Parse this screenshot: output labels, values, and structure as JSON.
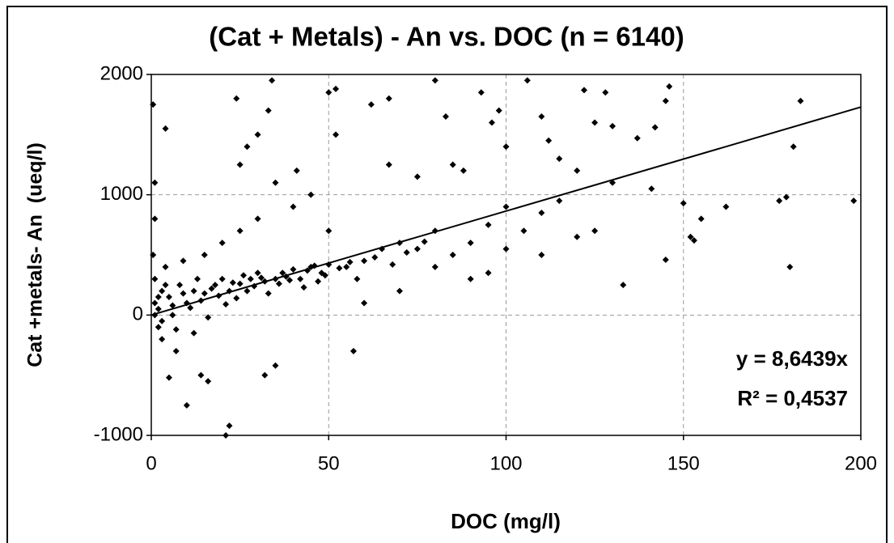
{
  "chart_data": {
    "type": "scatter",
    "title": "(Cat + Metals) - An vs. DOC (n = 6140)",
    "x_label": "DOC (mg/l)",
    "y_label": "Cat +metals- An  (ueq/l)",
    "xlim": [
      0,
      200
    ],
    "ylim": [
      -1000,
      2000
    ],
    "xticks": [
      0,
      50,
      100,
      150,
      200
    ],
    "yticks": [
      -1000,
      0,
      1000,
      2000
    ],
    "grid": true,
    "color": "#000000",
    "trendline": {
      "slope": 8.6439,
      "equation": "y = 8,6439x",
      "r2": "R² = 0,4537"
    },
    "x": [
      0.5,
      4,
      1,
      1,
      24,
      25,
      27,
      30,
      34,
      33,
      35,
      41,
      50,
      52,
      52,
      62,
      67,
      67,
      75,
      80,
      83,
      85,
      88,
      93,
      96,
      98,
      100,
      106,
      110,
      112,
      115,
      120,
      122,
      125,
      128,
      130,
      137,
      142,
      145,
      146,
      141,
      150,
      152,
      153,
      155,
      162,
      177,
      179,
      180,
      181,
      183,
      198,
      133,
      145,
      10,
      21,
      22,
      57,
      14,
      16,
      5,
      32,
      35,
      1,
      2,
      3,
      2,
      5,
      6,
      8,
      10,
      12,
      15,
      18,
      20,
      22,
      25,
      28,
      30,
      32,
      35,
      38,
      40,
      42,
      45,
      48,
      50,
      55,
      60,
      65,
      70,
      75,
      80,
      85,
      90,
      95,
      100,
      105,
      110,
      115,
      120,
      125,
      130,
      3,
      7,
      12,
      0.5,
      1,
      4,
      9,
      15,
      20,
      25,
      30,
      40,
      45,
      50,
      60,
      70,
      80,
      90,
      100,
      95,
      110,
      1,
      2,
      3,
      4,
      6,
      7,
      9,
      11,
      13,
      14,
      16,
      17,
      19,
      21,
      23,
      24,
      26,
      27,
      29,
      31,
      33,
      36,
      37,
      39,
      43,
      44,
      46,
      47,
      49,
      53,
      56,
      58,
      63,
      68,
      72,
      77
    ],
    "y": [
      1750,
      1550,
      1100,
      800,
      1800,
      1250,
      1400,
      1500,
      1950,
      1700,
      1100,
      1200,
      1850,
      1880,
      1500,
      1750,
      1800,
      1250,
      1150,
      1950,
      1650,
      1250,
      1200,
      1850,
      1600,
      1700,
      1400,
      1950,
      1650,
      1450,
      1300,
      1200,
      1870,
      1600,
      1850,
      1570,
      1470,
      1560,
      1780,
      1900,
      1050,
      930,
      650,
      620,
      800,
      900,
      950,
      980,
      400,
      1400,
      1780,
      950,
      250,
      460,
      -750,
      -1000,
      -920,
      -300,
      -500,
      -550,
      -520,
      -500,
      -420,
      100,
      50,
      200,
      -100,
      150,
      0,
      250,
      100,
      200,
      180,
      250,
      300,
      200,
      260,
      300,
      350,
      280,
      300,
      320,
      380,
      300,
      400,
      350,
      420,
      400,
      450,
      550,
      600,
      550,
      700,
      500,
      600,
      750,
      900,
      700,
      850,
      950,
      650,
      700,
      1100,
      -200,
      -300,
      -150,
      500,
      300,
      400,
      450,
      500,
      600,
      700,
      800,
      900,
      1000,
      700,
      100,
      200,
      400,
      300,
      550,
      350,
      500,
      0,
      150,
      -50,
      250,
      80,
      -120,
      180,
      60,
      300,
      120,
      -20,
      220,
      160,
      90,
      270,
      140,
      330,
      200,
      240,
      310,
      180,
      260,
      350,
      290,
      230,
      370,
      410,
      280,
      330,
      390,
      440,
      300,
      480,
      420,
      520,
      610
    ]
  }
}
